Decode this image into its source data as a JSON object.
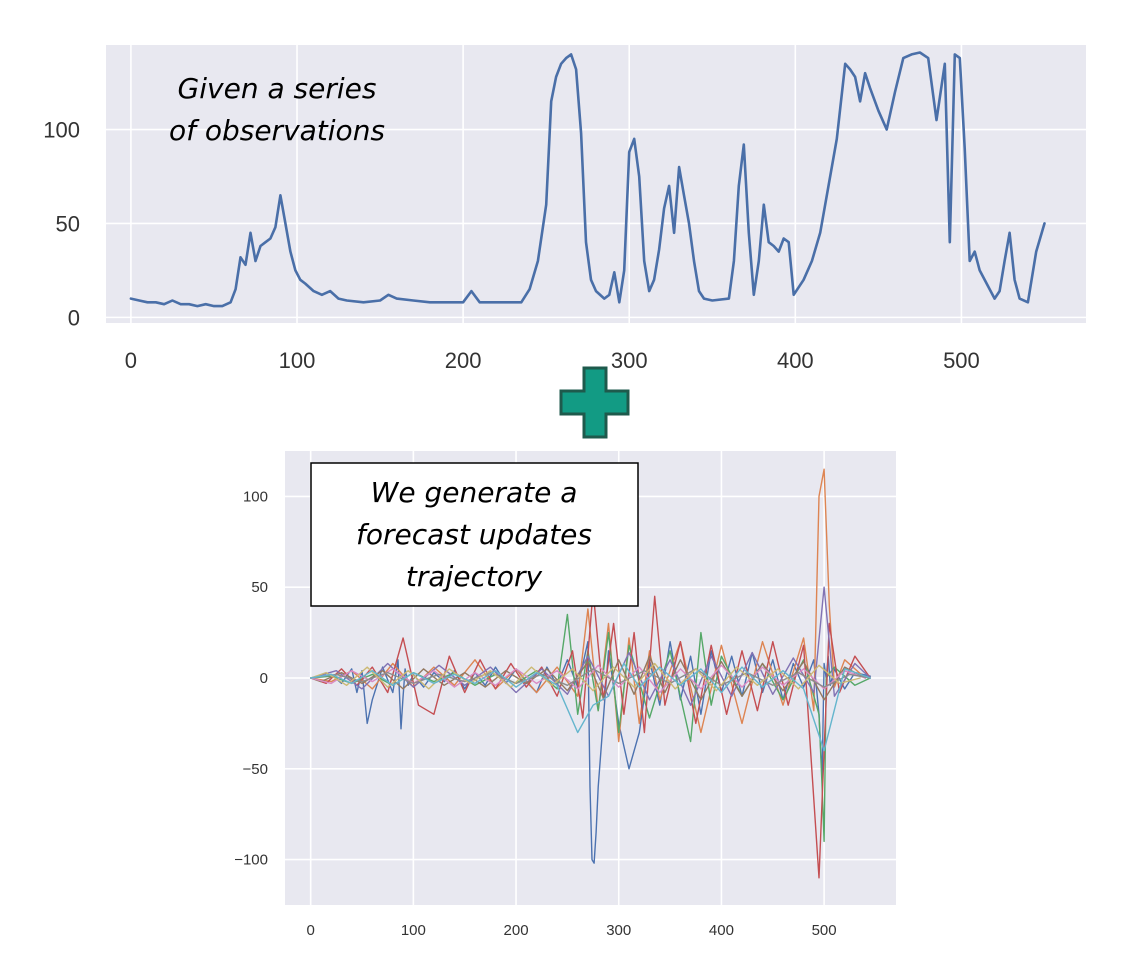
{
  "colors": {
    "axes_bg": "#e8e8f0",
    "grid": "#ffffff",
    "observed_line": "#4a6fa8",
    "plus_fill": "#129b84",
    "plus_stroke": "#1e5a4c",
    "update_palette": [
      "#4c72b0",
      "#dd8452",
      "#55a868",
      "#c44e52",
      "#8172b3",
      "#937860",
      "#da8bc3",
      "#8c8c8c",
      "#ccb974",
      "#64b5cd"
    ]
  },
  "connector_icon": "plus-icon",
  "top_annotation": [
    "Given a series",
    "of observations"
  ],
  "bottom_annotation": [
    "We generate a",
    "forecast updates",
    "trajectory"
  ],
  "chart_data": [
    {
      "type": "line",
      "title": "",
      "xlabel": "",
      "ylabel": "",
      "xlim": [
        -15,
        575
      ],
      "ylim": [
        -3,
        145
      ],
      "xticks": [
        0,
        100,
        200,
        300,
        400,
        500
      ],
      "yticks": [
        0,
        50,
        100
      ],
      "grid": true,
      "series": [
        {
          "x": [
            0,
            5,
            10,
            15,
            20,
            25,
            30,
            35,
            40,
            45,
            50,
            55,
            60,
            63,
            66,
            69,
            72,
            75,
            78,
            81,
            84,
            87,
            90,
            93,
            96,
            99,
            102,
            105,
            110,
            115,
            120,
            125,
            130,
            140,
            150,
            155,
            160,
            170,
            180,
            190,
            200,
            205,
            210,
            220,
            230,
            235,
            240,
            245,
            250,
            253,
            256,
            259,
            262,
            265,
            268,
            271,
            274,
            277,
            280,
            285,
            288,
            291,
            294,
            297,
            300,
            303,
            306,
            309,
            312,
            315,
            318,
            321,
            324,
            327,
            330,
            333,
            336,
            339,
            342,
            345,
            350,
            360,
            363,
            366,
            369,
            372,
            375,
            378,
            381,
            384,
            387,
            390,
            393,
            396,
            399,
            405,
            410,
            415,
            420,
            425,
            430,
            433,
            436,
            439,
            442,
            445,
            450,
            455,
            460,
            465,
            470,
            475,
            480,
            485,
            490,
            493,
            496,
            499,
            502,
            505,
            508,
            511,
            520,
            523,
            526,
            529,
            532,
            535,
            540,
            545,
            550
          ],
          "y": [
            10,
            9,
            8,
            8,
            7,
            9,
            7,
            7,
            6,
            7,
            6,
            6,
            8,
            15,
            32,
            28,
            45,
            30,
            38,
            40,
            42,
            48,
            65,
            50,
            35,
            25,
            20,
            18,
            14,
            12,
            14,
            10,
            9,
            8,
            9,
            12,
            10,
            9,
            8,
            8,
            8,
            14,
            8,
            8,
            8,
            8,
            15,
            30,
            60,
            115,
            128,
            135,
            138,
            140,
            132,
            98,
            40,
            20,
            14,
            10,
            12,
            24,
            8,
            25,
            88,
            95,
            75,
            30,
            14,
            20,
            36,
            58,
            70,
            45,
            80,
            65,
            50,
            30,
            14,
            10,
            9,
            10,
            30,
            70,
            92,
            45,
            12,
            30,
            60,
            40,
            38,
            35,
            42,
            40,
            12,
            20,
            30,
            45,
            70,
            95,
            135,
            132,
            128,
            115,
            130,
            122,
            110,
            100,
            120,
            138,
            140,
            141,
            138,
            105,
            135,
            40,
            140,
            138,
            90,
            30,
            35,
            25,
            10,
            14,
            30,
            45,
            20,
            10,
            8,
            35,
            50
          ]
        }
      ]
    },
    {
      "type": "line",
      "title": "",
      "xlabel": "",
      "ylabel": "",
      "xlim": [
        -25,
        570
      ],
      "ylim": [
        -125,
        125
      ],
      "xticks": [
        0,
        100,
        200,
        300,
        400,
        500
      ],
      "yticks": [
        -100,
        -50,
        0,
        50,
        100
      ],
      "grid": true,
      "series": [
        {
          "x": [
            0,
            20,
            30,
            40,
            45,
            50,
            55,
            60,
            70,
            80,
            85,
            88,
            90,
            92,
            95,
            100,
            110,
            120,
            130,
            140,
            150,
            160,
            170,
            180,
            190,
            200,
            210,
            220,
            230,
            240,
            250,
            260,
            270,
            272,
            274,
            276,
            278,
            280,
            290,
            300,
            310,
            320,
            330,
            340,
            350,
            360,
            370,
            380,
            390,
            400,
            410,
            420,
            430,
            440,
            450,
            460,
            470,
            480,
            490,
            495,
            498,
            500,
            502,
            504,
            506,
            510,
            520,
            530,
            545
          ],
          "y": [
            0,
            2,
            -3,
            5,
            -8,
            4,
            -25,
            -12,
            6,
            -8,
            10,
            -28,
            -10,
            5,
            -4,
            2,
            -5,
            3,
            -2,
            4,
            -6,
            3,
            -4,
            6,
            -3,
            5,
            -2,
            -8,
            6,
            -4,
            10,
            -5,
            20,
            -60,
            -100,
            -102,
            -85,
            -60,
            15,
            -25,
            -50,
            -30,
            10,
            -15,
            20,
            -12,
            12,
            -20,
            15,
            -8,
            12,
            -10,
            14,
            -8,
            10,
            -12,
            8,
            -5,
            10,
            -20,
            -55,
            8,
            0,
            12,
            -4,
            5,
            -6,
            3,
            1
          ]
        },
        {
          "x": [
            0,
            20,
            40,
            60,
            80,
            100,
            120,
            140,
            160,
            180,
            200,
            220,
            240,
            260,
            270,
            280,
            290,
            300,
            310,
            320,
            330,
            340,
            360,
            380,
            400,
            420,
            440,
            460,
            480,
            490,
            495,
            500,
            505,
            510,
            520,
            540
          ],
          "y": [
            0,
            -2,
            4,
            -6,
            8,
            -5,
            6,
            -4,
            10,
            -6,
            5,
            -8,
            6,
            -10,
            38,
            -18,
            30,
            -35,
            22,
            -25,
            15,
            -12,
            20,
            -30,
            18,
            -25,
            20,
            -15,
            22,
            -18,
            100,
            115,
            40,
            -5,
            10,
            0
          ]
        },
        {
          "x": [
            0,
            20,
            40,
            60,
            80,
            100,
            120,
            140,
            160,
            180,
            200,
            220,
            240,
            250,
            260,
            270,
            280,
            290,
            300,
            310,
            330,
            350,
            370,
            380,
            390,
            400,
            420,
            440,
            460,
            480,
            495,
            498,
            500,
            502,
            510,
            530,
            545
          ],
          "y": [
            0,
            1,
            -3,
            2,
            -4,
            3,
            -2,
            3,
            -4,
            2,
            -3,
            4,
            -6,
            35,
            -20,
            15,
            -18,
            25,
            -30,
            18,
            -22,
            15,
            -35,
            25,
            -15,
            12,
            -10,
            8,
            -12,
            10,
            -20,
            -60,
            -90,
            0,
            6,
            -4,
            0
          ]
        },
        {
          "x": [
            0,
            15,
            30,
            45,
            60,
            75,
            90,
            105,
            120,
            135,
            150,
            165,
            180,
            195,
            210,
            225,
            240,
            255,
            265,
            275,
            285,
            295,
            305,
            315,
            325,
            335,
            345,
            360,
            375,
            390,
            405,
            420,
            435,
            450,
            465,
            480,
            495,
            500,
            505,
            515,
            530,
            545
          ],
          "y": [
            0,
            -3,
            5,
            -4,
            6,
            -8,
            22,
            -15,
            -20,
            12,
            -8,
            10,
            -6,
            8,
            -5,
            6,
            -10,
            15,
            -22,
            48,
            -12,
            30,
            -20,
            25,
            -30,
            45,
            -15,
            20,
            -25,
            18,
            -20,
            15,
            -18,
            20,
            -15,
            18,
            -110,
            -40,
            30,
            -8,
            12,
            0
          ]
        },
        {
          "x": [
            0,
            25,
            50,
            75,
            100,
            125,
            150,
            175,
            200,
            225,
            250,
            270,
            290,
            310,
            330,
            350,
            370,
            390,
            410,
            430,
            450,
            470,
            490,
            500,
            510,
            530,
            545
          ],
          "y": [
            0,
            4,
            -6,
            8,
            -5,
            7,
            -4,
            6,
            -8,
            5,
            -9,
            12,
            -10,
            14,
            -12,
            10,
            -15,
            12,
            -10,
            14,
            -9,
            11,
            -8,
            50,
            -10,
            8,
            0
          ]
        },
        {
          "x": [
            0,
            10,
            30,
            50,
            70,
            90,
            110,
            130,
            150,
            170,
            190,
            210,
            230,
            250,
            270,
            285,
            300,
            315,
            330,
            345,
            360,
            380,
            400,
            420,
            440,
            460,
            480,
            500,
            520,
            540
          ],
          "y": [
            0,
            -2,
            3,
            -3,
            4,
            -6,
            5,
            -4,
            3,
            -5,
            4,
            -3,
            5,
            -7,
            9,
            -11,
            10,
            -9,
            12,
            -8,
            10,
            -12,
            9,
            -10,
            8,
            -7,
            9,
            -12,
            6,
            0
          ]
        },
        {
          "x": [
            0,
            20,
            40,
            60,
            80,
            100,
            120,
            140,
            160,
            180,
            200,
            220,
            240,
            260,
            280,
            300,
            320,
            340,
            360,
            380,
            400,
            420,
            440,
            460,
            480,
            500,
            520,
            540
          ],
          "y": [
            0,
            -3,
            4,
            -2,
            5,
            -3,
            4,
            -5,
            3,
            -4,
            5,
            -3,
            4,
            -6,
            7,
            -5,
            6,
            -8,
            5,
            -6,
            7,
            -5,
            6,
            -4,
            5,
            -6,
            4,
            0
          ]
        },
        {
          "x": [
            0,
            25,
            50,
            75,
            100,
            125,
            150,
            175,
            200,
            225,
            250,
            275,
            300,
            325,
            350,
            375,
            400,
            425,
            450,
            475,
            500,
            525,
            545
          ],
          "y": [
            0,
            2,
            -2,
            3,
            -3,
            2,
            -2,
            3,
            -3,
            2,
            -4,
            5,
            -3,
            4,
            -3,
            5,
            -4,
            3,
            -4,
            3,
            -5,
            2,
            0
          ]
        },
        {
          "x": [
            0,
            15,
            35,
            55,
            75,
            95,
            115,
            135,
            155,
            175,
            195,
            215,
            235,
            255,
            275,
            295,
            315,
            335,
            355,
            375,
            395,
            415,
            435,
            455,
            475,
            495,
            515,
            535
          ],
          "y": [
            0,
            3,
            -4,
            6,
            -5,
            4,
            -6,
            5,
            -3,
            4,
            -5,
            6,
            -4,
            5,
            -7,
            6,
            -5,
            8,
            -6,
            5,
            -7,
            6,
            -4,
            5,
            -6,
            7,
            -3,
            0
          ]
        },
        {
          "x": [
            0,
            20,
            40,
            60,
            80,
            100,
            120,
            140,
            160,
            180,
            200,
            220,
            240,
            260,
            275,
            290,
            305,
            320,
            340,
            360,
            380,
            400,
            420,
            440,
            460,
            480,
            500,
            520,
            545
          ],
          "y": [
            0,
            2,
            -3,
            4,
            -4,
            3,
            -3,
            2,
            -3,
            4,
            -5,
            3,
            -4,
            -30,
            -15,
            -10,
            8,
            -5,
            6,
            -4,
            5,
            -8,
            6,
            -5,
            4,
            -6,
            -40,
            5,
            0
          ]
        }
      ]
    }
  ]
}
